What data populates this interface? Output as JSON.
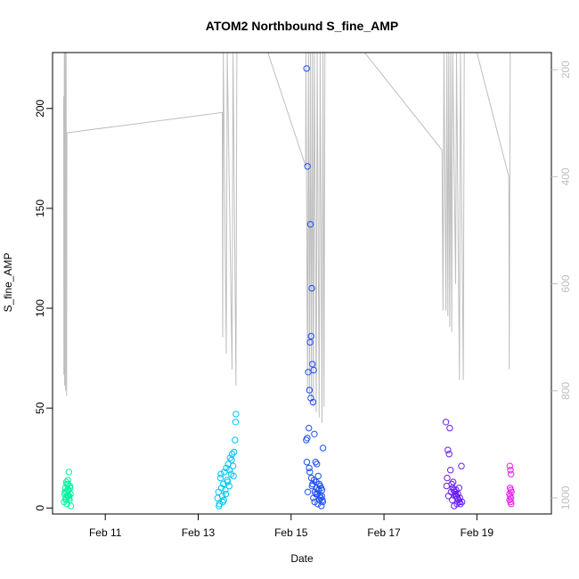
{
  "chart_data": {
    "type": "scatter",
    "title": "ATOM2 Northbound S_fine_AMP",
    "xlabel": "Date",
    "ylabel": "S_fine_AMP",
    "xlim": [
      "2023-02-09T20:45:00",
      "2023-02-20T14:30:00"
    ],
    "ylim": [
      -3,
      228
    ],
    "x_ticks": [
      {
        "date": "2023-02-11",
        "label": "Feb 11"
      },
      {
        "date": "2023-02-13",
        "label": "Feb 13"
      },
      {
        "date": "2023-02-15",
        "label": "Feb 15"
      },
      {
        "date": "2023-02-17",
        "label": "Feb 17"
      },
      {
        "date": "2023-02-19",
        "label": "Feb 19"
      }
    ],
    "y_ticks": [
      0,
      50,
      100,
      150,
      200
    ],
    "y2_ticks": [
      200,
      400,
      600,
      800,
      1000
    ],
    "y2lim": [
      1030,
      168
    ],
    "grid": false,
    "legend": "none",
    "series": [
      {
        "color": "#00f5a0",
        "points": [
          [
            "2023-02-10T03:00:00",
            7
          ],
          [
            "2023-02-10T03:20:00",
            10
          ],
          [
            "2023-02-10T03:40:00",
            4
          ],
          [
            "2023-02-10T04:00:00",
            12
          ],
          [
            "2023-02-10T04:20:00",
            6
          ],
          [
            "2023-02-10T04:40:00",
            14
          ],
          [
            "2023-02-10T05:00:00",
            9
          ],
          [
            "2023-02-10T05:20:00",
            5
          ],
          [
            "2023-02-10T05:40:00",
            11
          ],
          [
            "2023-02-10T02:40:00",
            3
          ],
          [
            "2023-02-10T03:10:00",
            8
          ],
          [
            "2023-02-10T03:50:00",
            13
          ],
          [
            "2023-02-10T04:10:00",
            2
          ],
          [
            "2023-02-10T04:30:00",
            9
          ],
          [
            "2023-02-10T04:50:00",
            6
          ],
          [
            "2023-02-10T05:10:00",
            18
          ],
          [
            "2023-02-10T05:30:00",
            4
          ],
          [
            "2023-02-10T06:00:00",
            7
          ],
          [
            "2023-02-10T06:10:00",
            1
          ],
          [
            "2023-02-10T05:50:00",
            10
          ],
          [
            "2023-02-10T03:30:00",
            5
          ],
          [
            "2023-02-10T04:05:00",
            8
          ],
          [
            "2023-02-10T04:45:00",
            12
          ],
          [
            "2023-02-10T05:15:00",
            6
          ]
        ]
      },
      {
        "color": "#00c4f5",
        "points": [
          [
            "2023-02-13T10:00:00",
            5
          ],
          [
            "2023-02-13T10:30:00",
            8
          ],
          [
            "2023-02-13T11:00:00",
            2
          ],
          [
            "2023-02-13T11:30:00",
            15
          ],
          [
            "2023-02-13T12:00:00",
            10
          ],
          [
            "2023-02-13T12:30:00",
            6
          ],
          [
            "2023-02-13T13:00:00",
            12
          ],
          [
            "2023-02-13T13:30:00",
            18
          ],
          [
            "2023-02-13T14:00:00",
            9
          ],
          [
            "2023-02-13T14:30:00",
            20
          ],
          [
            "2023-02-13T15:00:00",
            14
          ],
          [
            "2023-02-13T15:30:00",
            22
          ],
          [
            "2023-02-13T16:00:00",
            11
          ],
          [
            "2023-02-13T16:30:00",
            25
          ],
          [
            "2023-02-13T17:00:00",
            17
          ],
          [
            "2023-02-13T17:30:00",
            27
          ],
          [
            "2023-02-13T18:00:00",
            21
          ],
          [
            "2023-02-13T18:30:00",
            28
          ],
          [
            "2023-02-13T19:00:00",
            34
          ],
          [
            "2023-02-13T19:20:00",
            43
          ],
          [
            "2023-02-13T19:30:00",
            47
          ],
          [
            "2023-02-13T13:15:00",
            4
          ],
          [
            "2023-02-13T14:15:00",
            7
          ],
          [
            "2023-02-13T15:15:00",
            13
          ],
          [
            "2023-02-13T16:15:00",
            19
          ],
          [
            "2023-02-13T17:15:00",
            24
          ],
          [
            "2023-02-13T18:15:00",
            16
          ],
          [
            "2023-02-13T10:45:00",
            1
          ],
          [
            "2023-02-13T11:45:00",
            17
          ],
          [
            "2023-02-13T12:45:00",
            3
          ]
        ]
      },
      {
        "color": "#1e50f0",
        "points": [
          [
            "2023-02-15T08:00:00",
            220
          ],
          [
            "2023-02-15T08:30:00",
            171
          ],
          [
            "2023-02-15T10:00:00",
            142
          ],
          [
            "2023-02-15T10:40:00",
            110
          ],
          [
            "2023-02-15T10:20:00",
            86
          ],
          [
            "2023-02-15T09:50:00",
            83
          ],
          [
            "2023-02-15T11:00:00",
            72
          ],
          [
            "2023-02-15T11:40:00",
            69
          ],
          [
            "2023-02-15T08:50:00",
            68
          ],
          [
            "2023-02-15T09:30:00",
            59
          ],
          [
            "2023-02-15T10:10:00",
            55
          ],
          [
            "2023-02-15T11:20:00",
            53
          ],
          [
            "2023-02-15T09:10:00",
            40
          ],
          [
            "2023-02-15T12:00:00",
            37
          ],
          [
            "2023-02-15T08:20:00",
            35
          ],
          [
            "2023-02-15T07:50:00",
            34
          ],
          [
            "2023-02-15T16:30:00",
            30
          ],
          [
            "2023-02-15T08:10:00",
            23
          ],
          [
            "2023-02-15T12:40:00",
            23
          ],
          [
            "2023-02-15T13:20:00",
            22
          ],
          [
            "2023-02-15T09:20:00",
            20
          ],
          [
            "2023-02-15T14:00:00",
            16
          ],
          [
            "2023-02-15T10:30:00",
            15
          ],
          [
            "2023-02-15T11:50:00",
            14
          ],
          [
            "2023-02-15T13:00:00",
            13
          ],
          [
            "2023-02-15T14:30:00",
            12
          ],
          [
            "2023-02-15T15:00:00",
            11
          ],
          [
            "2023-02-15T15:30:00",
            10
          ],
          [
            "2023-02-15T16:00:00",
            9
          ],
          [
            "2023-02-15T12:20:00",
            8
          ],
          [
            "2023-02-15T13:40:00",
            7
          ],
          [
            "2023-02-15T14:50:00",
            6
          ],
          [
            "2023-02-15T15:20:00",
            5
          ],
          [
            "2023-02-15T16:10:00",
            4
          ],
          [
            "2023-02-15T12:10:00",
            3
          ],
          [
            "2023-02-15T13:50:00",
            2
          ],
          [
            "2023-02-15T15:40:00",
            1
          ],
          [
            "2023-02-15T09:40:00",
            18
          ],
          [
            "2023-02-15T11:10:00",
            12
          ],
          [
            "2023-02-15T14:10:00",
            9
          ],
          [
            "2023-02-15T15:50:00",
            6
          ],
          [
            "2023-02-15T16:20:00",
            3
          ],
          [
            "2023-02-15T10:50:00",
            11
          ],
          [
            "2023-02-15T12:50:00",
            7
          ],
          [
            "2023-02-15T14:40:00",
            4
          ],
          [
            "2023-02-15T08:40:00",
            8
          ],
          [
            "2023-02-15T11:30:00",
            5
          ],
          [
            "2023-02-15T13:10:00",
            10
          ]
        ]
      },
      {
        "color": "#6a1ef0",
        "points": [
          [
            "2023-02-18T08:00:00",
            43
          ],
          [
            "2023-02-18T10:00:00",
            40
          ],
          [
            "2023-02-18T09:00:00",
            29
          ],
          [
            "2023-02-18T09:40:00",
            27
          ],
          [
            "2023-02-18T16:00:00",
            21
          ],
          [
            "2023-02-18T10:20:00",
            19
          ],
          [
            "2023-02-18T08:40:00",
            15
          ],
          [
            "2023-02-18T11:00:00",
            12
          ],
          [
            "2023-02-18T11:30:00",
            10
          ],
          [
            "2023-02-18T12:00:00",
            9
          ],
          [
            "2023-02-18T12:30:00",
            8
          ],
          [
            "2023-02-18T13:00:00",
            7
          ],
          [
            "2023-02-18T13:30:00",
            6
          ],
          [
            "2023-02-18T14:00:00",
            5
          ],
          [
            "2023-02-18T14:30:00",
            4
          ],
          [
            "2023-02-18T15:00:00",
            3
          ],
          [
            "2023-02-18T15:30:00",
            2
          ],
          [
            "2023-02-18T12:15:00",
            1
          ],
          [
            "2023-02-18T10:40:00",
            8
          ],
          [
            "2023-02-18T09:20:00",
            6
          ],
          [
            "2023-02-18T11:15:00",
            4
          ],
          [
            "2023-02-18T13:15:00",
            9
          ],
          [
            "2023-02-18T14:15:00",
            7
          ],
          [
            "2023-02-18T15:15:00",
            5
          ],
          [
            "2023-02-18T08:20:00",
            11
          ],
          [
            "2023-02-18T16:20:00",
            3
          ],
          [
            "2023-02-18T13:45:00",
            2
          ],
          [
            "2023-02-18T11:45:00",
            13
          ],
          [
            "2023-02-18T12:45:00",
            6
          ],
          [
            "2023-02-18T14:45:00",
            10
          ]
        ]
      },
      {
        "color": "#e81ef0",
        "points": [
          [
            "2023-02-19T17:00:00",
            21
          ],
          [
            "2023-02-19T17:20:00",
            19
          ],
          [
            "2023-02-19T17:40:00",
            17
          ],
          [
            "2023-02-19T17:10:00",
            10
          ],
          [
            "2023-02-19T17:30:00",
            9
          ],
          [
            "2023-02-19T17:50:00",
            8
          ],
          [
            "2023-02-19T16:50:00",
            7
          ],
          [
            "2023-02-19T17:15:00",
            6
          ],
          [
            "2023-02-19T17:35:00",
            5
          ],
          [
            "2023-02-19T16:55:00",
            4
          ],
          [
            "2023-02-19T17:25:00",
            3
          ],
          [
            "2023-02-19T17:45:00",
            2
          ]
        ]
      }
    ],
    "right_axis_line": {
      "color": "#bebebe",
      "points": [
        [
          "2023-02-10T02:30:00",
          250
        ],
        [
          "2023-02-10T02:35:00",
          770
        ],
        [
          "2023-02-10T02:50:00",
          168
        ],
        [
          "2023-02-10T03:00:00",
          790
        ],
        [
          "2023-02-10T03:15:00",
          168
        ],
        [
          "2023-02-10T03:30:00",
          800
        ],
        [
          "2023-02-10T03:45:00",
          168
        ],
        [
          "2023-02-10T04:00:00",
          810
        ],
        [
          "2023-02-10T04:10:00",
          318
        ],
        [
          "2023-02-13T12:30:00",
          280
        ],
        [
          "2023-02-13T12:40:00",
          700
        ],
        [
          "2023-02-13T13:00:00",
          168
        ],
        [
          "2023-02-13T14:30:00",
          730
        ],
        [
          "2023-02-13T15:00:00",
          168
        ],
        [
          "2023-02-13T17:30:00",
          760
        ],
        [
          "2023-02-13T18:00:00",
          168
        ],
        [
          "2023-02-13T19:30:00",
          790
        ],
        [
          "2023-02-13T20:00:00",
          168
        ],
        [
          "2023-02-14T12:00:00",
          168
        ],
        [
          "2023-02-15T07:30:00",
          380
        ],
        [
          "2023-02-15T07:40:00",
          168
        ],
        [
          "2023-02-15T08:30:00",
          800
        ],
        [
          "2023-02-15T09:00:00",
          168
        ],
        [
          "2023-02-15T09:30:00",
          810
        ],
        [
          "2023-02-15T10:00:00",
          168
        ],
        [
          "2023-02-15T10:30:00",
          820
        ],
        [
          "2023-02-15T11:00:00",
          168
        ],
        [
          "2023-02-15T11:30:00",
          830
        ],
        [
          "2023-02-15T12:00:00",
          168
        ],
        [
          "2023-02-15T13:00:00",
          840
        ],
        [
          "2023-02-15T13:30:00",
          168
        ],
        [
          "2023-02-15T14:30:00",
          850
        ],
        [
          "2023-02-15T15:00:00",
          168
        ],
        [
          "2023-02-15T16:00:00",
          860
        ],
        [
          "2023-02-15T16:30:00",
          168
        ],
        [
          "2023-02-15T17:00:00",
          830
        ],
        [
          "2023-02-15T17:30:00",
          168
        ],
        [
          "2023-02-16T14:00:00",
          168
        ],
        [
          "2023-02-18T06:00:00",
          350
        ],
        [
          "2023-02-18T06:30:00",
          650
        ],
        [
          "2023-02-18T07:00:00",
          168
        ],
        [
          "2023-02-18T08:00:00",
          650
        ],
        [
          "2023-02-18T08:30:00",
          168
        ],
        [
          "2023-02-18T09:00:00",
          660
        ],
        [
          "2023-02-18T09:30:00",
          168
        ],
        [
          "2023-02-18T10:00:00",
          680
        ],
        [
          "2023-02-18T10:30:00",
          168
        ],
        [
          "2023-02-18T11:00:00",
          690
        ],
        [
          "2023-02-18T11:30:00",
          168
        ],
        [
          "2023-02-18T13:00:00",
          600
        ],
        [
          "2023-02-18T13:30:00",
          168
        ],
        [
          "2023-02-18T15:00:00",
          780
        ],
        [
          "2023-02-18T15:30:00",
          168
        ],
        [
          "2023-02-18T17:00:00",
          780
        ],
        [
          "2023-02-18T17:30:00",
          168
        ],
        [
          "2023-02-19T00:00:00",
          168
        ],
        [
          "2023-02-19T16:30:00",
          400
        ],
        [
          "2023-02-19T16:45:00",
          760
        ],
        [
          "2023-02-19T17:15:00",
          168
        ]
      ]
    }
  }
}
